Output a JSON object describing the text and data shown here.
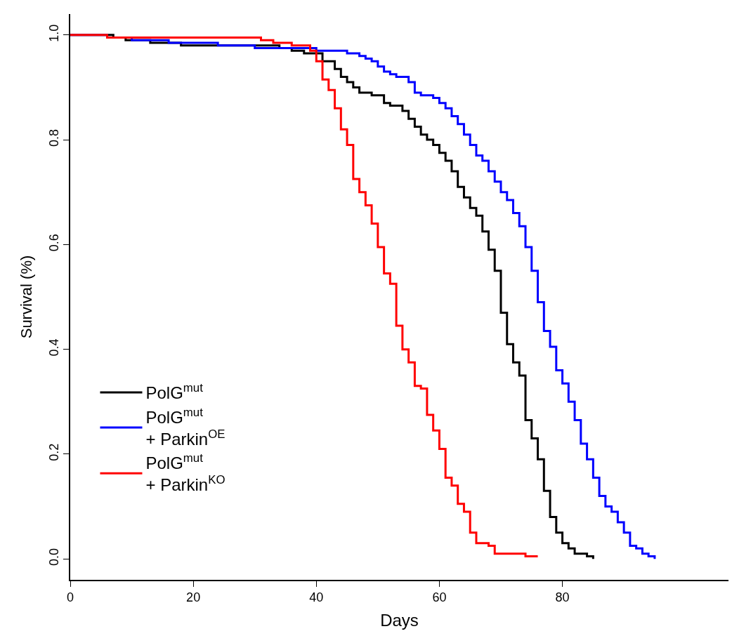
{
  "chart_data": {
    "type": "step",
    "xlabel": "Days",
    "ylabel": "Survival (%)",
    "xlim": [
      0,
      107
    ],
    "xticks": [
      0,
      20,
      40,
      60,
      80
    ],
    "ylim": [
      -0.04,
      1.04
    ],
    "yticks": [
      {
        "value": 0,
        "label": "0.0"
      },
      {
        "value": 0.2,
        "label": "0.2"
      },
      {
        "value": 0.4,
        "label": "0.4"
      },
      {
        "value": 0.6,
        "label": "0.6"
      },
      {
        "value": 0.8,
        "label": "0.8"
      },
      {
        "value": 1,
        "label": "1.0"
      }
    ],
    "legend": "left",
    "line_style": "solid",
    "marker": "none",
    "series": [
      {
        "name": "PolG$^{mut}$",
        "color": "#000000",
        "x": [
          0,
          7,
          9,
          13,
          18,
          34,
          36,
          38,
          41,
          43,
          44,
          45,
          46,
          47,
          49,
          51,
          52,
          54,
          55,
          56,
          57,
          58,
          59,
          60,
          61,
          62,
          63,
          64,
          65,
          66,
          67,
          68,
          69,
          70,
          71,
          72,
          73,
          74,
          75,
          76,
          77,
          78,
          79,
          80,
          81,
          82,
          84,
          85
        ],
        "values": [
          1.0,
          0.995,
          0.99,
          0.985,
          0.98,
          0.975,
          0.97,
          0.965,
          0.95,
          0.935,
          0.92,
          0.91,
          0.9,
          0.89,
          0.885,
          0.87,
          0.865,
          0.855,
          0.84,
          0.825,
          0.81,
          0.8,
          0.79,
          0.775,
          0.76,
          0.74,
          0.71,
          0.69,
          0.67,
          0.655,
          0.625,
          0.59,
          0.55,
          0.47,
          0.41,
          0.375,
          0.35,
          0.265,
          0.23,
          0.19,
          0.13,
          0.08,
          0.05,
          0.03,
          0.02,
          0.01,
          0.005,
          0.0
        ]
      },
      {
        "name": "PolG$^{mut}$\n+ Parkin$^{OE}$",
        "color": "#0000ff",
        "x": [
          0,
          6,
          10,
          16,
          24,
          30,
          40,
          45,
          47,
          48,
          49,
          50,
          51,
          52,
          53,
          55,
          56,
          57,
          59,
          60,
          61,
          62,
          63,
          64,
          65,
          66,
          67,
          68,
          69,
          70,
          71,
          72,
          73,
          74,
          75,
          76,
          77,
          78,
          79,
          80,
          81,
          82,
          83,
          84,
          85,
          86,
          87,
          88,
          89,
          90,
          91,
          92,
          93,
          94,
          95
        ],
        "values": [
          1.0,
          0.995,
          0.99,
          0.985,
          0.98,
          0.975,
          0.97,
          0.965,
          0.96,
          0.955,
          0.95,
          0.94,
          0.93,
          0.925,
          0.92,
          0.91,
          0.89,
          0.885,
          0.88,
          0.87,
          0.86,
          0.845,
          0.83,
          0.81,
          0.79,
          0.77,
          0.76,
          0.74,
          0.72,
          0.7,
          0.685,
          0.66,
          0.635,
          0.595,
          0.55,
          0.49,
          0.435,
          0.405,
          0.36,
          0.335,
          0.3,
          0.265,
          0.22,
          0.19,
          0.155,
          0.12,
          0.1,
          0.09,
          0.07,
          0.05,
          0.025,
          0.02,
          0.01,
          0.005,
          0.0
        ]
      },
      {
        "name": "PolG$^{mut}$\n+ Parkin$^{KO}$",
        "color": "#ff0000",
        "x": [
          0,
          6,
          31,
          33,
          36,
          39,
          40,
          41,
          42,
          43,
          44,
          45,
          46,
          47,
          48,
          49,
          50,
          51,
          52,
          53,
          54,
          55,
          56,
          57,
          58,
          59,
          60,
          61,
          62,
          63,
          64,
          65,
          66,
          68,
          69,
          74,
          76
        ],
        "values": [
          1.0,
          0.995,
          0.99,
          0.985,
          0.98,
          0.97,
          0.95,
          0.915,
          0.895,
          0.86,
          0.82,
          0.79,
          0.725,
          0.7,
          0.675,
          0.64,
          0.595,
          0.545,
          0.525,
          0.445,
          0.4,
          0.375,
          0.33,
          0.325,
          0.275,
          0.245,
          0.21,
          0.155,
          0.14,
          0.105,
          0.09,
          0.05,
          0.03,
          0.025,
          0.01,
          0.005,
          0.005
        ]
      }
    ]
  }
}
